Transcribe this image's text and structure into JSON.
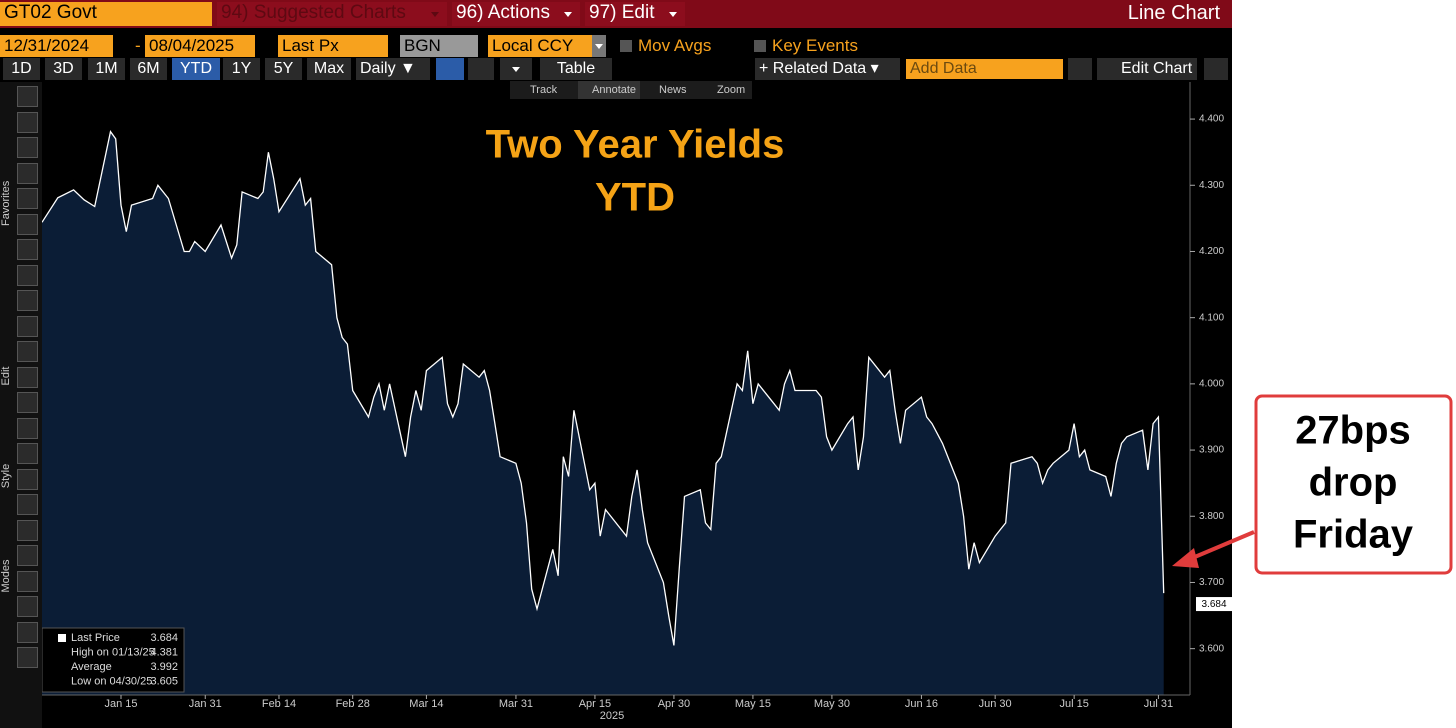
{
  "ui": {
    "security": "GT02 Govt",
    "menu": [
      "94) Suggested Charts",
      "96) Actions",
      "97) Edit"
    ],
    "view": "Line Chart",
    "start_date": "12/31/2024",
    "date_sep": "-",
    "end_date": "08/04/2025",
    "field": "Last Px",
    "source": "BGN",
    "currency": "Local CCY",
    "toggles": [
      "Mov Avgs",
      "Key Events"
    ],
    "ranges": [
      "1D",
      "3D",
      "1M",
      "6M",
      "YTD",
      "1Y",
      "5Y",
      "Max"
    ],
    "frequency": "Daily ▼",
    "table": "Table",
    "related": "+ Related Data ▾",
    "add_data": "Add Data",
    "edit_chart": "Edit Chart",
    "tools": [
      "Track",
      "Annotate",
      "News",
      "Zoom"
    ],
    "sidebar": [
      "Favorites",
      "Edit",
      "Style",
      "Modes"
    ]
  },
  "chart_data": {
    "type": "area",
    "title": "Two Year Yields",
    "subtitle": "YTD",
    "x_label": "2025",
    "x": [
      "2024-12-31",
      "2025-01-03",
      "2025-01-06",
      "2025-01-08",
      "2025-01-10",
      "2025-01-13",
      "2025-01-14",
      "2025-01-15",
      "2025-01-16",
      "2025-01-17",
      "2025-01-21",
      "2025-01-22",
      "2025-01-24",
      "2025-01-27",
      "2025-01-28",
      "2025-01-29",
      "2025-01-31",
      "2025-02-03",
      "2025-02-05",
      "2025-02-06",
      "2025-02-07",
      "2025-02-10",
      "2025-02-11",
      "2025-02-12",
      "2025-02-13",
      "2025-02-14",
      "2025-02-18",
      "2025-02-19",
      "2025-02-20",
      "2025-02-21",
      "2025-02-24",
      "2025-02-25",
      "2025-02-26",
      "2025-02-27",
      "2025-02-28",
      "2025-03-03",
      "2025-03-04",
      "2025-03-05",
      "2025-03-06",
      "2025-03-07",
      "2025-03-10",
      "2025-03-11",
      "2025-03-12",
      "2025-03-13",
      "2025-03-14",
      "2025-03-17",
      "2025-03-18",
      "2025-03-19",
      "2025-03-20",
      "2025-03-21",
      "2025-03-24",
      "2025-03-25",
      "2025-03-26",
      "2025-03-27",
      "2025-03-28",
      "2025-03-31",
      "2025-04-01",
      "2025-04-02",
      "2025-04-03",
      "2025-04-04",
      "2025-04-07",
      "2025-04-08",
      "2025-04-09",
      "2025-04-10",
      "2025-04-11",
      "2025-04-14",
      "2025-04-15",
      "2025-04-16",
      "2025-04-17",
      "2025-04-21",
      "2025-04-22",
      "2025-04-23",
      "2025-04-24",
      "2025-04-25",
      "2025-04-28",
      "2025-04-29",
      "2025-04-30",
      "2025-05-01",
      "2025-05-02",
      "2025-05-05",
      "2025-05-06",
      "2025-05-07",
      "2025-05-08",
      "2025-05-09",
      "2025-05-12",
      "2025-05-13",
      "2025-05-14",
      "2025-05-15",
      "2025-05-16",
      "2025-05-19",
      "2025-05-20",
      "2025-05-21",
      "2025-05-22",
      "2025-05-23",
      "2025-05-27",
      "2025-05-28",
      "2025-05-29",
      "2025-05-30",
      "2025-06-02",
      "2025-06-03",
      "2025-06-04",
      "2025-06-05",
      "2025-06-06",
      "2025-06-09",
      "2025-06-10",
      "2025-06-11",
      "2025-06-12",
      "2025-06-13",
      "2025-06-16",
      "2025-06-17",
      "2025-06-18",
      "2025-06-20",
      "2025-06-23",
      "2025-06-24",
      "2025-06-25",
      "2025-06-26",
      "2025-06-27",
      "2025-06-30",
      "2025-07-01",
      "2025-07-02",
      "2025-07-03",
      "2025-07-07",
      "2025-07-08",
      "2025-07-09",
      "2025-07-10",
      "2025-07-11",
      "2025-07-14",
      "2025-07-15",
      "2025-07-16",
      "2025-07-17",
      "2025-07-18",
      "2025-07-21",
      "2025-07-22",
      "2025-07-23",
      "2025-07-24",
      "2025-07-25",
      "2025-07-28",
      "2025-07-29",
      "2025-07-30",
      "2025-07-31",
      "2025-08-01"
    ],
    "series": [
      {
        "name": "Last Price",
        "color": "#ffffff",
        "fill": "#0b1d36",
        "values": [
          4.244,
          4.281,
          4.293,
          4.278,
          4.268,
          4.381,
          4.37,
          4.27,
          4.23,
          4.27,
          4.28,
          4.3,
          4.28,
          4.2,
          4.2,
          4.215,
          4.2,
          4.24,
          4.19,
          4.21,
          4.29,
          4.28,
          4.29,
          4.35,
          4.31,
          4.26,
          4.31,
          4.27,
          4.28,
          4.2,
          4.18,
          4.1,
          4.07,
          4.06,
          3.99,
          3.95,
          3.98,
          4.0,
          3.96,
          4.0,
          3.89,
          3.95,
          3.99,
          3.96,
          4.02,
          4.04,
          3.97,
          3.95,
          3.97,
          4.03,
          4.01,
          4.02,
          3.99,
          3.94,
          3.89,
          3.88,
          3.85,
          3.79,
          3.69,
          3.66,
          3.75,
          3.71,
          3.89,
          3.86,
          3.96,
          3.84,
          3.85,
          3.77,
          3.81,
          3.77,
          3.83,
          3.87,
          3.81,
          3.76,
          3.7,
          3.65,
          3.605,
          3.72,
          3.83,
          3.84,
          3.79,
          3.78,
          3.88,
          3.89,
          4.0,
          3.99,
          4.05,
          3.97,
          4.0,
          3.97,
          3.96,
          4.0,
          4.02,
          3.99,
          3.99,
          3.98,
          3.92,
          3.9,
          3.94,
          3.95,
          3.87,
          3.92,
          4.04,
          4.01,
          4.02,
          3.96,
          3.91,
          3.96,
          3.98,
          3.95,
          3.94,
          3.91,
          3.85,
          3.8,
          3.72,
          3.76,
          3.73,
          3.77,
          3.78,
          3.79,
          3.88,
          3.89,
          3.88,
          3.85,
          3.87,
          3.88,
          3.9,
          3.94,
          3.89,
          3.9,
          3.87,
          3.86,
          3.83,
          3.88,
          3.91,
          3.92,
          3.93,
          3.87,
          3.94,
          3.95,
          3.684
        ]
      }
    ],
    "xlim": [
      "2024-12-31",
      "2025-08-06"
    ],
    "xticks": [
      {
        "value": "2025-01-15",
        "label": "Jan 15"
      },
      {
        "value": "2025-01-31",
        "label": "Jan 31"
      },
      {
        "value": "2025-02-14",
        "label": "Feb 14"
      },
      {
        "value": "2025-02-28",
        "label": "Feb 28"
      },
      {
        "value": "2025-03-14",
        "label": "Mar 14"
      },
      {
        "value": "2025-03-31",
        "label": "Mar 31"
      },
      {
        "value": "2025-04-15",
        "label": "Apr 15"
      },
      {
        "value": "2025-04-30",
        "label": "Apr 30"
      },
      {
        "value": "2025-05-15",
        "label": "May 15"
      },
      {
        "value": "2025-05-30",
        "label": "May 30"
      },
      {
        "value": "2025-06-16",
        "label": "Jun 16"
      },
      {
        "value": "2025-06-30",
        "label": "Jun 30"
      },
      {
        "value": "2025-07-15",
        "label": "Jul 15"
      },
      {
        "value": "2025-07-31",
        "label": "Jul 31"
      }
    ],
    "ylim": [
      3.53,
      4.456
    ],
    "yticks": [
      {
        "value": 3.6,
        "label": "3.600"
      },
      {
        "value": 3.7,
        "label": "3.700"
      },
      {
        "value": 3.8,
        "label": "3.800"
      },
      {
        "value": 3.9,
        "label": "3.900"
      },
      {
        "value": 4.0,
        "label": "4.000"
      },
      {
        "value": 4.1,
        "label": "4.100"
      },
      {
        "value": 4.2,
        "label": "4.200"
      },
      {
        "value": 4.3,
        "label": "4.300"
      },
      {
        "value": 4.4,
        "label": "4.400"
      }
    ],
    "grid": false,
    "y_axis_side": "right",
    "stats": [
      {
        "label": "Last Price",
        "value": "3.684"
      },
      {
        "label": "High on 01/13/25",
        "value": "4.381"
      },
      {
        "label": "Average",
        "value": "3.992"
      },
      {
        "label": "Low on 04/30/25",
        "value": "3.605"
      }
    ],
    "annotations": [
      "27bps",
      "drop",
      "Friday"
    ]
  }
}
